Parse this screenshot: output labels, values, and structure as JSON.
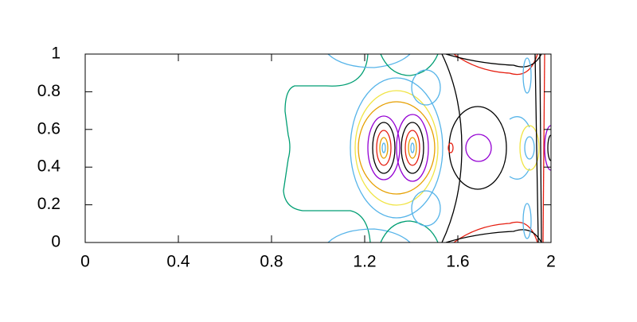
{
  "chart_data": {
    "type": "contour",
    "xlim": [
      0,
      2
    ],
    "ylim": [
      0,
      1
    ],
    "xticks": [
      0,
      0.4,
      0.8,
      1.2,
      1.6,
      2
    ],
    "yticks": [
      0,
      0.2,
      0.4,
      0.6,
      0.8,
      1
    ]
  }
}
